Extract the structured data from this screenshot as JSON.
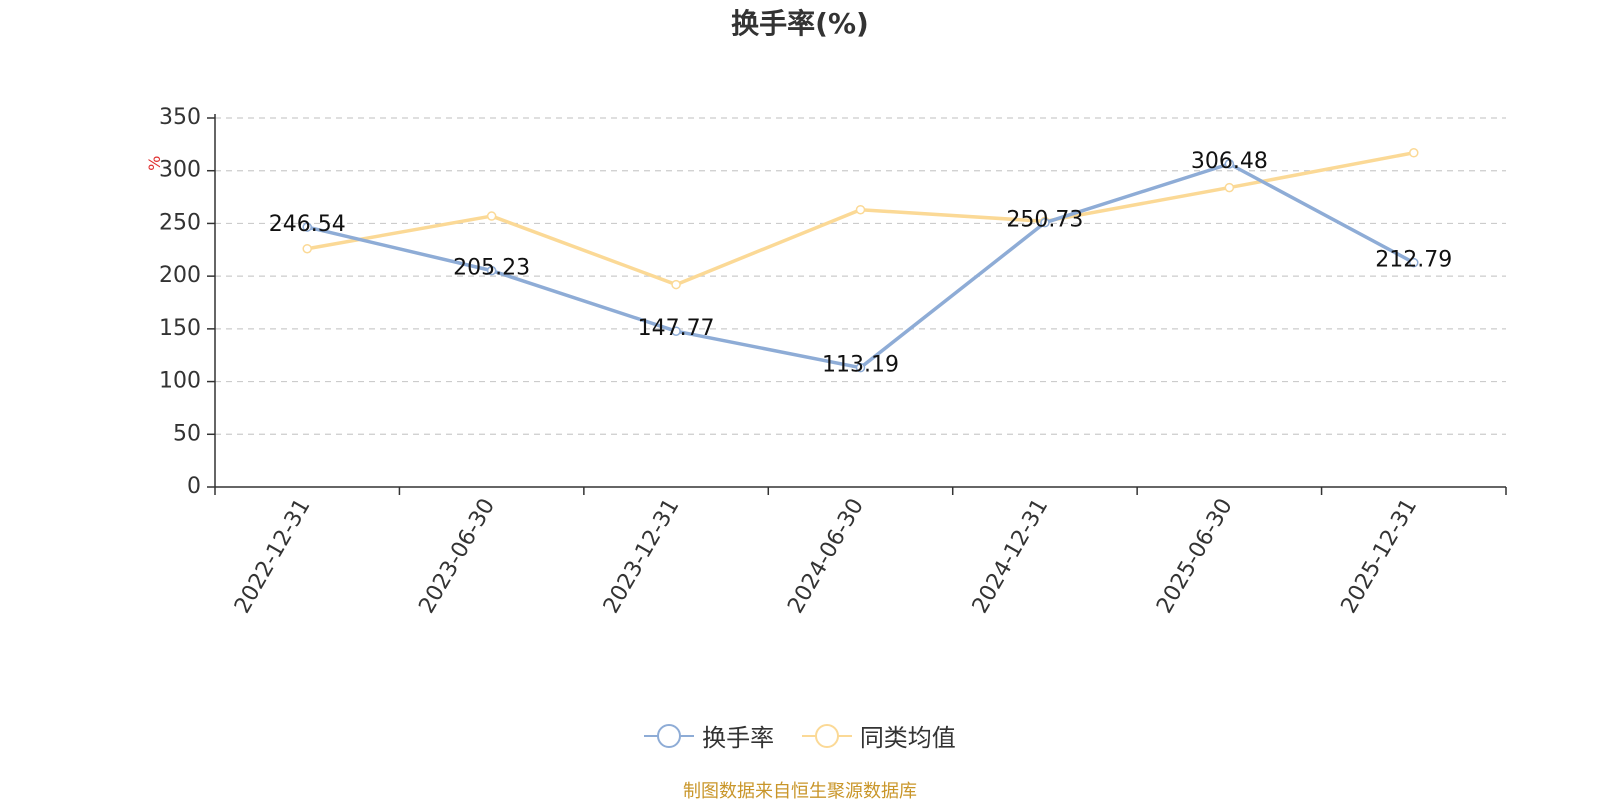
{
  "chart_data": {
    "type": "line",
    "title": "换手率(%)",
    "ylabel": "%",
    "xlabel": "",
    "ylim": [
      0,
      350
    ],
    "yticks": [
      0,
      50,
      100,
      150,
      200,
      250,
      300,
      350
    ],
    "categories": [
      "2022-12-31",
      "2023-06-30",
      "2023-12-31",
      "2024-06-30",
      "2024-12-31",
      "2025-06-30",
      "2025-12-31"
    ],
    "grid": true,
    "legend_position": "bottom",
    "series": [
      {
        "name": "换手率",
        "color": "#8eacd6",
        "show_labels": true,
        "values": [
          246.54,
          205.23,
          147.77,
          113.19,
          250.73,
          306.48,
          212.79
        ],
        "labels": [
          "246.54",
          "205.23",
          "147.77",
          "113.19",
          "250.73",
          "306.48",
          "212.79"
        ]
      },
      {
        "name": "同类均值",
        "color": "#fbd996",
        "show_labels": false,
        "values": [
          226,
          257,
          192,
          263,
          252,
          284,
          317
        ]
      }
    ],
    "source": "制图数据来自恒生聚源数据库"
  }
}
